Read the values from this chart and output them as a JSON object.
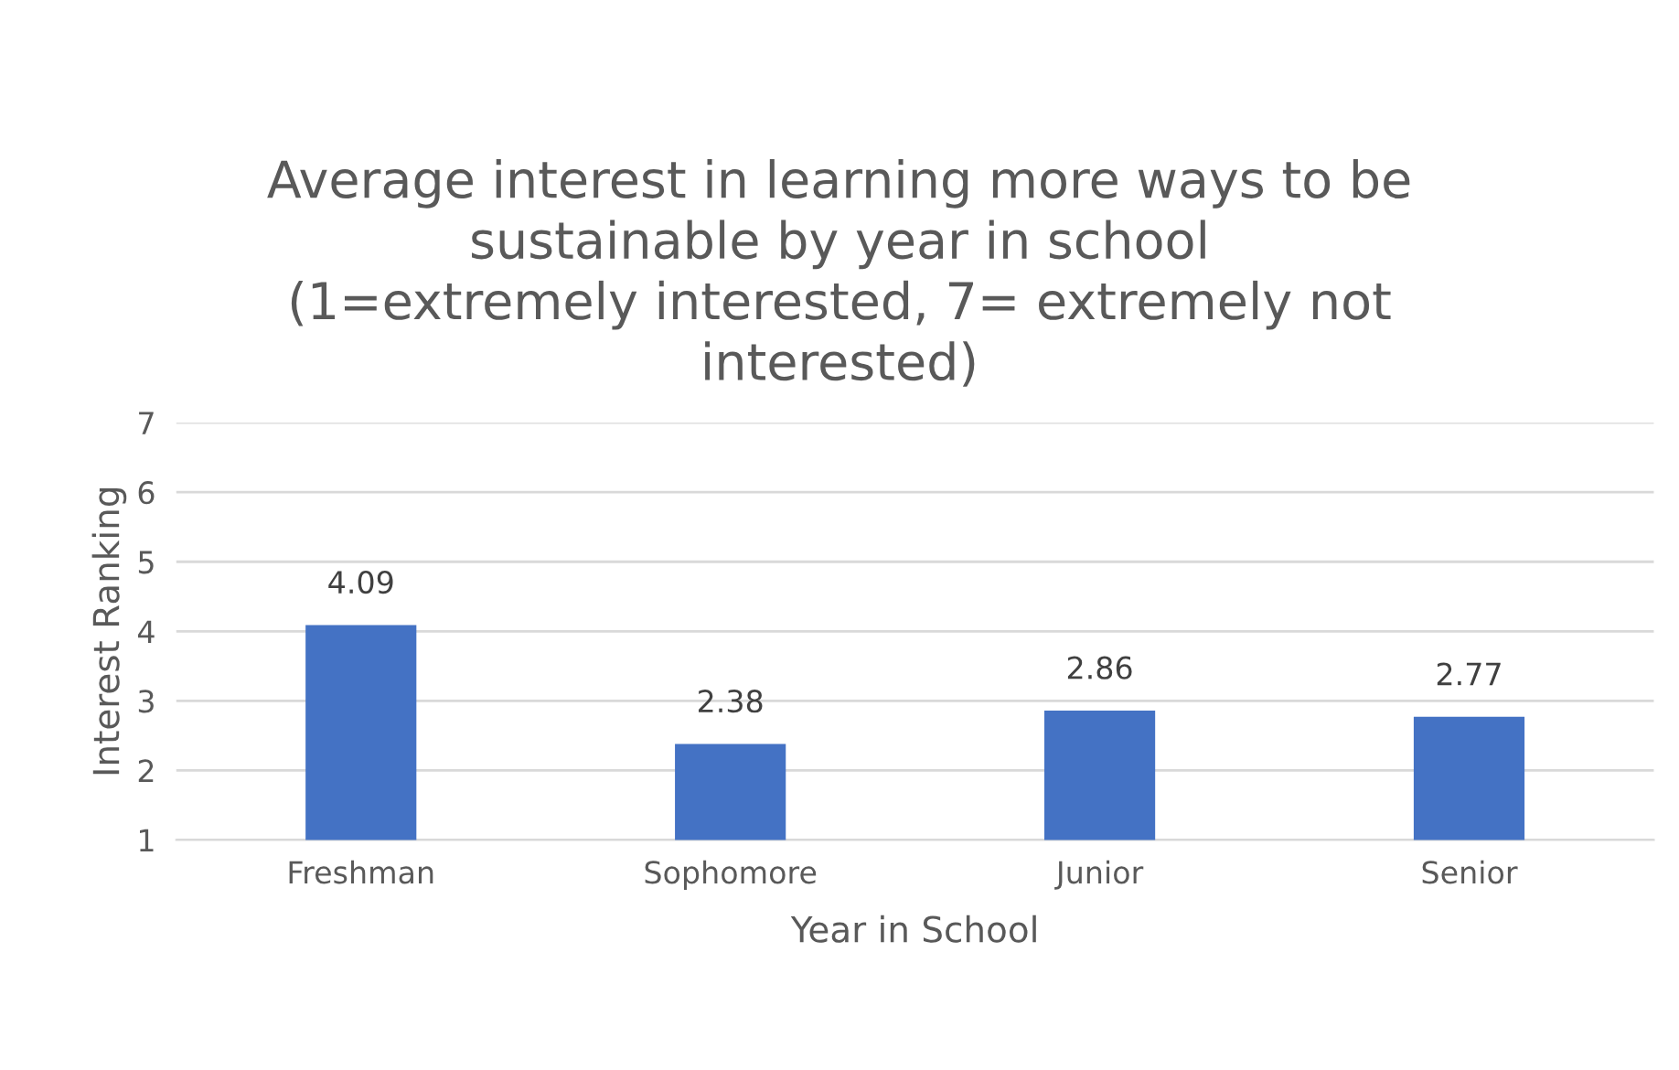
{
  "chart_data": {
    "type": "bar",
    "title": "Average interest in learning more ways to be\nsustainable by year in school\n(1=extremely interested, 7= extremely not\ninterested)",
    "xlabel": "Year in School",
    "ylabel": "Interest Ranking",
    "categories": [
      "Freshman",
      "Sophomore",
      "Junior",
      "Senior"
    ],
    "values": [
      4.09,
      2.38,
      2.86,
      2.77
    ],
    "color": "#4472c4",
    "ylim": [
      1,
      7
    ],
    "yticks": [
      1,
      2,
      3,
      4,
      5,
      6,
      7
    ],
    "grid": "y",
    "data_labels": true
  }
}
